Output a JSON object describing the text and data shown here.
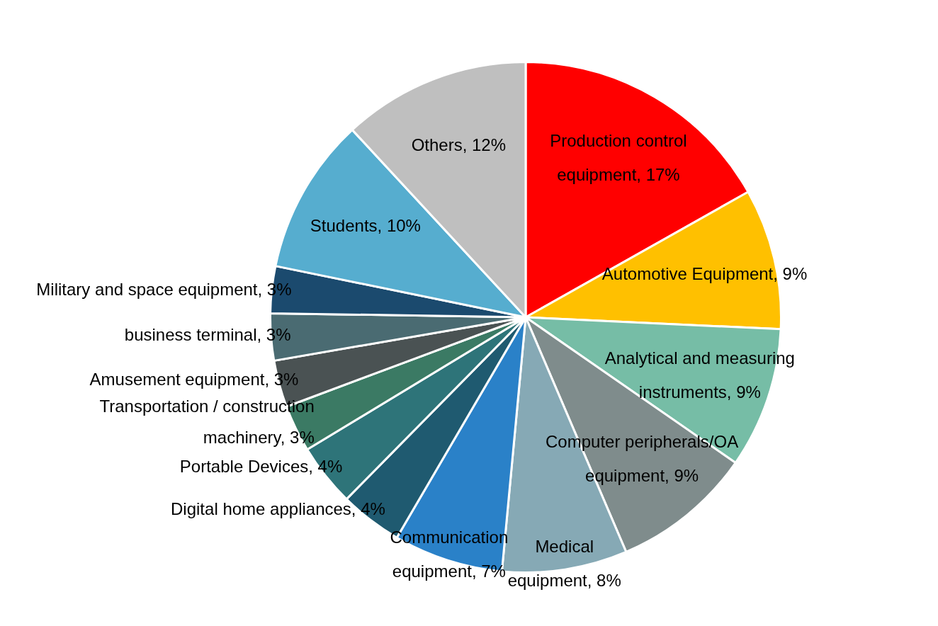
{
  "chart_data": {
    "type": "pie",
    "categories": [
      "Production control equipment",
      "Automotive Equipment",
      "Analytical and measuring instruments",
      "Computer peripherals/OA equipment",
      "Medical equipment",
      "Communication equipment",
      "Digital home appliances",
      "Portable Devices",
      "Transportation / construction machinery",
      "Amusement equipment",
      "business terminal",
      "Military and space equipment",
      "Students",
      "Others"
    ],
    "values": [
      17,
      9,
      9,
      9,
      8,
      7,
      4,
      4,
      3,
      3,
      3,
      3,
      10,
      12
    ],
    "value_labels": [
      "17%",
      "9%",
      "9%",
      "9%",
      "8%",
      "7%",
      "4%",
      "4%",
      "3%",
      "3%",
      "3%",
      "3%",
      "10%",
      "12%"
    ],
    "colors": [
      "#ff0000",
      "#ffc000",
      "#76bda6",
      "#7f8c8c",
      "#86a9b5",
      "#2a81c8",
      "#1f5a70",
      "#2e7479",
      "#3b7a64",
      "#4a5253",
      "#4a6b72",
      "#1b4a6e",
      "#56adcf",
      "#bfbfbf"
    ],
    "legend": false
  }
}
